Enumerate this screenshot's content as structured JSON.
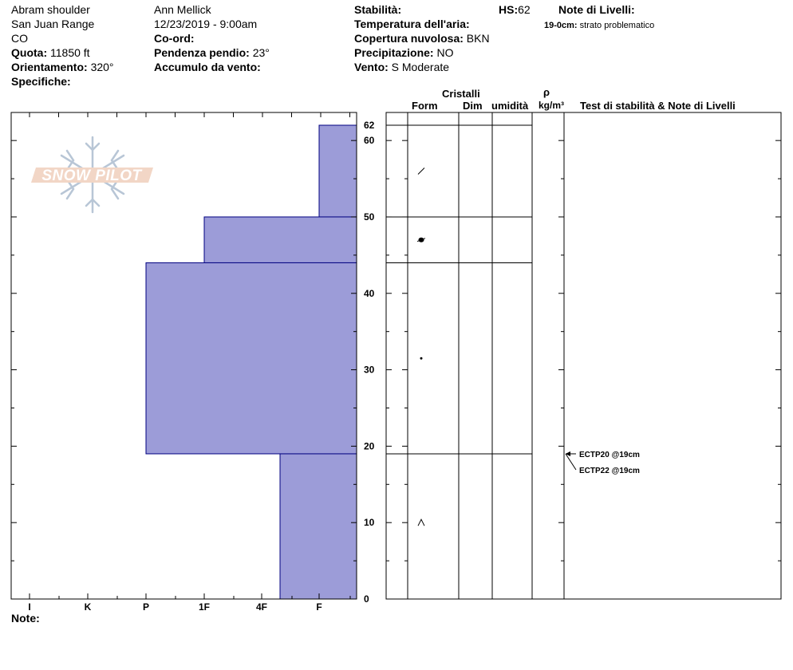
{
  "header": {
    "location": "Abram shoulder",
    "range": "San Juan Range",
    "state": "CO",
    "elevation_label": "Quota:",
    "elevation_value": "11850 ft",
    "aspect_label": "Orientamento:",
    "aspect_value": "320°",
    "specifics_label": "Specifiche:",
    "observer": "Ann Mellick",
    "datetime": "12/23/2019 - 9:00am",
    "coord_label": "Co-ord:",
    "slope_label": "Pendenza pendio:",
    "slope_value": "23°",
    "wind_loading_label": "Accumulo da vento:",
    "stability_label": "Stabilità:",
    "air_temp_label": "Temperatura dell'aria:",
    "sky_label": "Copertura nuvolosa:",
    "sky_value": "BKN",
    "precip_label": "Precipitazione:",
    "precip_value": "NO",
    "wind_label": "Vento:",
    "wind_value": "S Moderate",
    "hs_label": "HS:",
    "hs_value": "62",
    "layer_notes_title": "Note di Livelli:",
    "layer_note_depth": "19-0cm:",
    "layer_note_text": "strato problematico"
  },
  "columns": {
    "crystals": "Cristalli",
    "form": "Form",
    "size": "Dim",
    "moisture": "umidità",
    "density_symbol": "ρ",
    "density_unit": "kg/m³",
    "tests": "Test di stabilità & Note di Livelli"
  },
  "logo_text": "SNOW PILOT",
  "notes_label": "Note:",
  "colors": {
    "hardness_fill": "#9c9cd8",
    "hardness_stroke": "#000080"
  },
  "chart_data": {
    "type": "bar",
    "orientation": "horizontal",
    "y_axis": {
      "range": [
        0,
        62
      ],
      "ticks": [
        0,
        10,
        20,
        30,
        40,
        50,
        60
      ],
      "top_label": "62"
    },
    "x_axis": {
      "categories": [
        "I",
        "K",
        "P",
        "1F",
        "4F",
        "F"
      ]
    },
    "layers": [
      {
        "top": 62,
        "bottom": 50,
        "hardness": "F"
      },
      {
        "top": 50,
        "bottom": 44,
        "hardness": "1F"
      },
      {
        "top": 44,
        "bottom": 19,
        "hardness": "P"
      },
      {
        "top": 19,
        "bottom": 0,
        "hardness": "4F+"
      }
    ],
    "crystal_symbols": [
      {
        "depth": 56,
        "form": "decomposing"
      },
      {
        "depth": 47,
        "form": "melt-freeze"
      },
      {
        "depth": 31.5,
        "form": "rounded"
      },
      {
        "depth": 10,
        "form": "faceted"
      }
    ],
    "stability_tests": [
      {
        "label": "ECTP20 @19cm",
        "depth": 19
      },
      {
        "label": "ECTP22 @19cm",
        "depth": 19
      }
    ]
  }
}
